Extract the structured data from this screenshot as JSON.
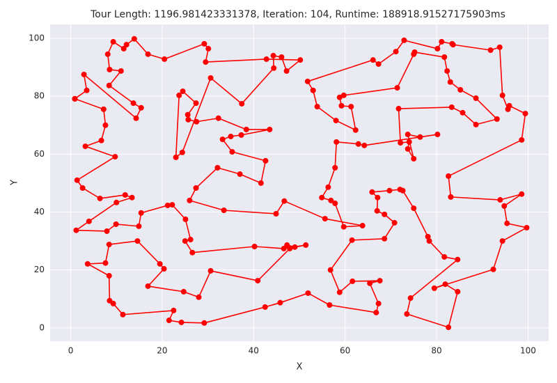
{
  "chart_data": {
    "type": "line",
    "title": "Tour Length: 1196.981423331378, Iteration: 104, Runtime: 188918.91527175903ms",
    "x_label": "X",
    "y_label": "Y",
    "color": "#ff0000",
    "grid": true,
    "xlim": [
      -4.5,
      104.5
    ],
    "ylim": [
      -4.6,
      104.8
    ],
    "xticks": [
      0,
      20,
      40,
      60,
      80,
      100
    ],
    "yticks": [
      0,
      20,
      40,
      60,
      80,
      100
    ],
    "x": [
      0.9,
      7.2,
      7.6,
      6.7,
      3.2,
      9.7,
      1.4,
      2.6,
      6.4,
      11.9,
      13.4,
      10.0,
      4.0,
      1.2,
      7.9,
      9.9,
      14.9,
      15.4,
      21.2,
      22.2,
      25.1,
      26.2,
      25.0,
      26.6,
      40.2,
      46.6,
      51.4,
      49.0,
      47.3,
      47.9,
      40.9,
      30.6,
      28.0,
      24.7,
      16.9,
      20.4,
      19.5,
      14.6,
      8.4,
      7.6,
      3.7,
      8.4,
      8.5,
      9.3,
      11.4,
      22.5,
      21.5,
      24.2,
      29.2,
      42.5,
      45.8,
      51.9,
      56.6,
      66.8,
      67.3,
      65.4,
      67.6,
      61.6,
      58.8,
      56.8,
      61.5,
      68.6,
      70.8,
      68.6,
      67.0,
      67.1,
      65.9,
      69.7,
      72.0,
      72.6,
      75.0,
      78.1,
      78.4,
      81.7,
      84.6,
      74.3,
      73.5,
      82.6,
      84.6,
      81.9,
      79.5,
      92.4,
      94.4,
      99.7,
      95.4,
      94.8,
      98.6,
      93.9,
      83.1,
      82.6,
      98.6,
      99.4,
      95.9,
      95.6,
      94.4,
      93.8,
      91.8,
      83.6,
      83.4,
      81.1,
      80.2,
      72.9,
      71.1,
      67.3,
      66.1,
      51.8,
      53.0,
      53.9,
      58.0,
      62.3,
      61.3,
      59.2,
      58.8,
      59.7,
      71.4,
      75.0,
      75.2,
      81.7,
      82.3,
      83.0,
      85.2,
      88.6,
      93.2,
      88.6,
      85.7,
      83.3,
      71.7,
      72.1,
      74.0,
      73.7,
      75.0,
      73.7,
      76.4,
      80.2,
      64.2,
      62.9,
      58.1,
      57.8,
      56.3,
      54.9,
      56.9,
      57.8,
      59.7,
      63.8,
      55.6,
      46.7,
      44.9,
      33.5,
      26.0,
      27.4,
      32.1,
      37.0,
      41.6,
      42.6,
      35.3,
      33.2,
      35.0,
      37.3,
      43.5,
      38.4,
      32.3,
      27.5,
      25.7,
      25.6,
      27.4,
      24.5,
      23.7,
      23.0,
      24.4,
      30.6,
      37.4,
      44.4,
      44.3,
      46.1,
      47.2,
      50.2,
      42.8,
      29.5,
      30.1,
      29.2,
      20.5,
      16.9,
      13.9,
      12.2,
      11.6,
      9.3,
      8.1,
      8.5,
      11.0,
      8.4,
      13.7,
      15.4,
      14.3,
      2.9,
      3.5,
      0.9
    ],
    "values": [
      79.1,
      75.5,
      70.0,
      64.7,
      62.7,
      59.1,
      51.0,
      48.3,
      44.7,
      45.9,
      45.0,
      43.3,
      36.8,
      33.7,
      33.4,
      35.8,
      35.1,
      39.7,
      42.3,
      42.5,
      37.5,
      30.5,
      30.0,
      26.0,
      28.1,
      27.4,
      28.6,
      27.9,
      28.6,
      27.4,
      16.3,
      19.7,
      10.6,
      12.5,
      14.4,
      20.4,
      22.1,
      30.0,
      28.8,
      22.4,
      22.1,
      18.0,
      9.4,
      8.4,
      4.6,
      6.0,
      2.6,
      1.9,
      1.7,
      7.2,
      8.7,
      12.0,
      7.9,
      5.3,
      8.4,
      15.4,
      16.3,
      16.1,
      12.3,
      20.0,
      30.3,
      30.8,
      36.3,
      39.2,
      40.4,
      45.0,
      46.9,
      47.4,
      47.8,
      47.4,
      41.3,
      31.5,
      30.0,
      24.5,
      23.6,
      10.3,
      4.8,
      0.2,
      12.5,
      15.1,
      13.7,
      20.2,
      30.0,
      34.6,
      36.1,
      42.1,
      46.2,
      44.2,
      45.2,
      52.4,
      64.9,
      74.0,
      76.7,
      75.5,
      80.3,
      96.9,
      95.9,
      97.8,
      98.1,
      98.8,
      96.4,
      99.3,
      95.4,
      91.1,
      92.5,
      85.1,
      82.0,
      76.4,
      71.6,
      68.3,
      76.4,
      76.7,
      79.6,
      80.3,
      82.9,
      94.5,
      95.2,
      93.5,
      88.7,
      84.9,
      82.2,
      79.3,
      72.1,
      70.2,
      74.3,
      76.2,
      75.7,
      63.9,
      64.2,
      61.8,
      58.4,
      66.8,
      65.9,
      66.8,
      63.0,
      63.5,
      64.2,
      55.3,
      48.6,
      45.0,
      44.0,
      43.0,
      34.9,
      35.3,
      37.7,
      43.8,
      39.4,
      40.6,
      44.0,
      48.3,
      55.3,
      53.1,
      50.0,
      57.7,
      60.8,
      65.1,
      66.1,
      66.6,
      68.5,
      68.5,
      72.4,
      71.2,
      71.9,
      73.6,
      77.6,
      81.7,
      80.3,
      58.9,
      60.6,
      86.3,
      77.4,
      89.7,
      94.0,
      93.5,
      88.7,
      92.5,
      92.8,
      91.8,
      96.4,
      98.1,
      92.8,
      94.5,
      99.8,
      97.8,
      96.4,
      98.8,
      94.5,
      89.2,
      88.7,
      83.7,
      77.6,
      76.0,
      72.4,
      87.5,
      82.0,
      79.1
    ]
  }
}
